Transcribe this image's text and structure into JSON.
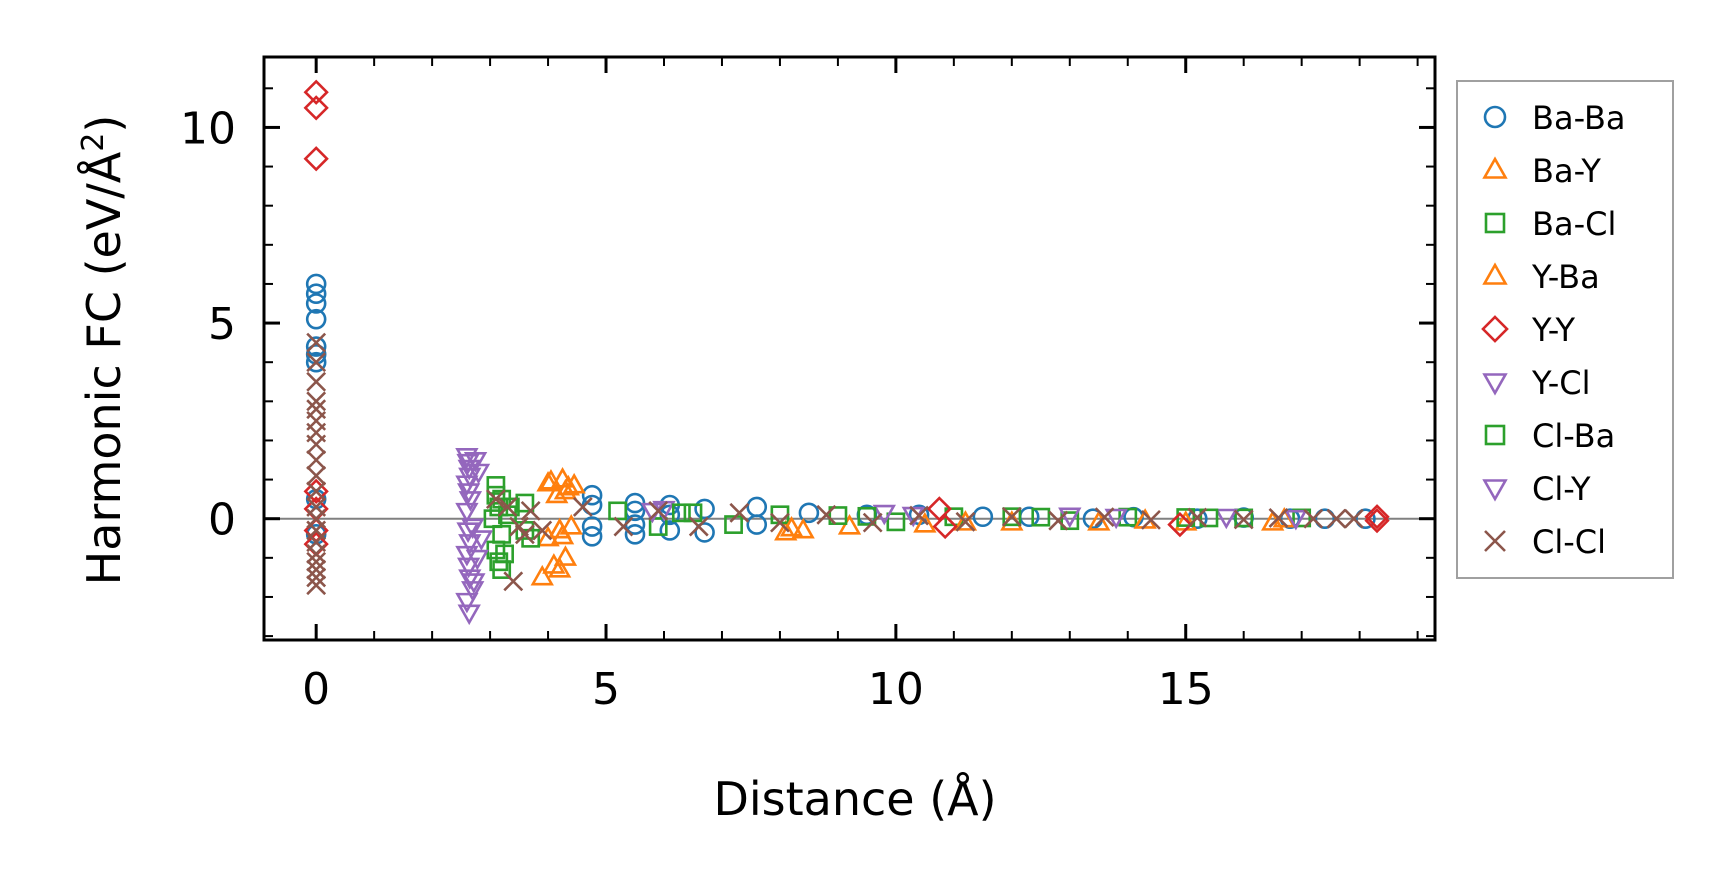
{
  "chart_data": {
    "type": "scatter",
    "title": "",
    "xlabel": "Distance (Å)",
    "ylabel": "Harmonic FC (eV/Å",
    "ylabel_sup": "2",
    "ylabel_close": ")",
    "xlim": [
      -0.9,
      19.3
    ],
    "ylim": [
      -3.1,
      11.8
    ],
    "xticks": [
      0,
      5,
      10,
      15
    ],
    "xtick_labels": [
      "0",
      "5",
      "10",
      "15"
    ],
    "yticks": [
      0,
      5,
      10
    ],
    "ytick_labels": [
      "0",
      "5",
      "10"
    ],
    "grid": false,
    "zero_line": true,
    "legend_position": "outside-right",
    "series": [
      {
        "name": "Ba-Ba",
        "marker": "circle",
        "color": "#1f77b4",
        "x": [
          0,
          0,
          0,
          0,
          0,
          0,
          0,
          0,
          0,
          4.76,
          4.76,
          4.76,
          4.76,
          5.5,
          5.5,
          5.5,
          5.5,
          6.1,
          6.1,
          6.1,
          6.7,
          6.7,
          7.6,
          7.6,
          8.5,
          9.5,
          10.4,
          11.5,
          12.3,
          13.4,
          14.1,
          15.2,
          16.0,
          16.8,
          17.4,
          18.1
        ],
        "y": [
          6.0,
          5.75,
          5.5,
          5.1,
          4.4,
          4.2,
          4.0,
          0.5,
          -0.4,
          0.6,
          0.35,
          -0.2,
          -0.45,
          0.4,
          0.2,
          -0.15,
          -0.4,
          0.35,
          0.1,
          -0.3,
          0.25,
          -0.35,
          0.3,
          -0.15,
          0.15,
          0.1,
          0.1,
          0.05,
          0.05,
          0.0,
          0.04,
          0.0,
          0.03,
          0.0,
          0.0,
          0.0
        ]
      },
      {
        "name": "Ba-Y",
        "marker": "triangle-up",
        "color": "#ff7f0e",
        "x": [
          4.0,
          4.15,
          4.25,
          4.35,
          3.9,
          4.2,
          4.1,
          4.3,
          4.0,
          4.2,
          8.1,
          8.4,
          9.2,
          10.5,
          12.0,
          13.5,
          15.0,
          16.5
        ],
        "y": [
          0.9,
          0.6,
          1.0,
          0.8,
          -1.5,
          -1.3,
          -1.2,
          -1.0,
          -0.5,
          -0.3,
          -0.35,
          -0.3,
          -0.2,
          -0.15,
          -0.1,
          -0.1,
          -0.1,
          -0.1
        ]
      },
      {
        "name": "Ba-Cl",
        "marker": "square",
        "color": "#2ca02c",
        "x": [
          3.1,
          3.1,
          3.15,
          3.05,
          3.2,
          3.1,
          3.2,
          3.6,
          3.6,
          3.7,
          5.2,
          5.9,
          6.5,
          7.2,
          8.0,
          9.0,
          10.0,
          11.0,
          12.0,
          13.0,
          14.0,
          15.0,
          16.0,
          17.0
        ],
        "y": [
          0.85,
          0.6,
          0.3,
          0.0,
          -0.4,
          -0.8,
          -1.3,
          0.4,
          -0.3,
          -0.5,
          0.2,
          -0.2,
          0.15,
          -0.15,
          0.1,
          0.08,
          -0.08,
          0.05,
          0.05,
          -0.05,
          0.04,
          0.03,
          0.02,
          0.02
        ]
      },
      {
        "name": "Y-Ba",
        "marker": "triangle-up",
        "color": "#ff7f0e",
        "x": [
          4.05,
          4.3,
          4.45,
          4.2,
          4.4,
          4.25,
          8.2,
          11.2,
          14.3,
          16.7
        ],
        "y": [
          0.95,
          0.7,
          0.85,
          -0.3,
          -0.2,
          -0.45,
          -0.25,
          -0.1,
          -0.05,
          -0.02
        ]
      },
      {
        "name": "Y-Y",
        "marker": "diamond",
        "color": "#d62728",
        "x": [
          0,
          0,
          0,
          0,
          0,
          0,
          0,
          10.75,
          10.85,
          14.9,
          18.3,
          18.3
        ],
        "y": [
          10.9,
          10.5,
          9.2,
          0.7,
          0.25,
          -0.3,
          -0.65,
          0.25,
          -0.2,
          -0.15,
          0.05,
          -0.05
        ]
      },
      {
        "name": "Y-Cl",
        "marker": "triangle-down",
        "color": "#9467bd",
        "x": [
          2.6,
          2.62,
          2.64,
          2.65,
          2.6,
          2.63,
          2.66,
          2.6,
          2.62,
          2.65,
          2.6,
          2.63,
          2.65,
          2.7,
          2.6,
          2.64,
          6.0,
          9.8,
          13.0,
          15.7
        ],
        "y": [
          1.6,
          1.45,
          1.3,
          1.1,
          0.9,
          0.7,
          0.5,
          0.2,
          -0.3,
          -0.6,
          -0.9,
          -1.2,
          -1.5,
          -1.8,
          -2.1,
          -2.4,
          0.25,
          0.15,
          0.08,
          0.05
        ]
      },
      {
        "name": "Cl-Ba",
        "marker": "square",
        "color": "#2ca02c",
        "x": [
          3.2,
          3.3,
          3.25,
          3.15,
          3.35,
          6.3,
          9.5,
          12.5,
          15.4
        ],
        "y": [
          0.5,
          0.1,
          -0.9,
          -1.1,
          0.3,
          0.15,
          0.06,
          0.04,
          0.02
        ]
      },
      {
        "name": "Cl-Y",
        "marker": "triangle-down",
        "color": "#9467bd",
        "x": [
          2.75,
          2.8,
          2.7,
          2.85,
          2.78,
          2.72,
          5.8,
          10.3,
          13.8,
          16.9
        ],
        "y": [
          1.5,
          1.2,
          -0.2,
          -0.5,
          -1.0,
          -1.6,
          0.2,
          0.1,
          0.05,
          0.02
        ]
      },
      {
        "name": "Cl-Cl",
        "marker": "x",
        "color": "#8c564b",
        "x": [
          0,
          0,
          0,
          0,
          0,
          0,
          0,
          0,
          0,
          0,
          0,
          0,
          0,
          0,
          0,
          0,
          0,
          0,
          0,
          0,
          3.1,
          3.3,
          3.5,
          3.7,
          3.9,
          3.4,
          3.6,
          4.6,
          5.3,
          5.9,
          6.6,
          7.3,
          8.0,
          8.8,
          9.6,
          10.4,
          11.2,
          12.0,
          12.8,
          13.6,
          14.4,
          15.2,
          16.0,
          16.6,
          17.2,
          17.6,
          17.9
        ],
        "y": [
          4.5,
          4.0,
          3.5,
          3.0,
          2.8,
          2.5,
          2.2,
          1.9,
          1.5,
          1.1,
          0.7,
          0.3,
          0.0,
          -0.3,
          -0.6,
          -0.9,
          -1.1,
          -1.3,
          -1.5,
          -1.7,
          0.5,
          0.3,
          -0.2,
          0.2,
          -0.3,
          -1.6,
          -0.4,
          0.3,
          -0.2,
          0.2,
          -0.2,
          0.15,
          -0.1,
          0.1,
          -0.1,
          0.08,
          -0.08,
          0.05,
          -0.05,
          0.04,
          -0.03,
          0.03,
          -0.02,
          0.02,
          0.0,
          0.0,
          0.0
        ]
      }
    ]
  }
}
